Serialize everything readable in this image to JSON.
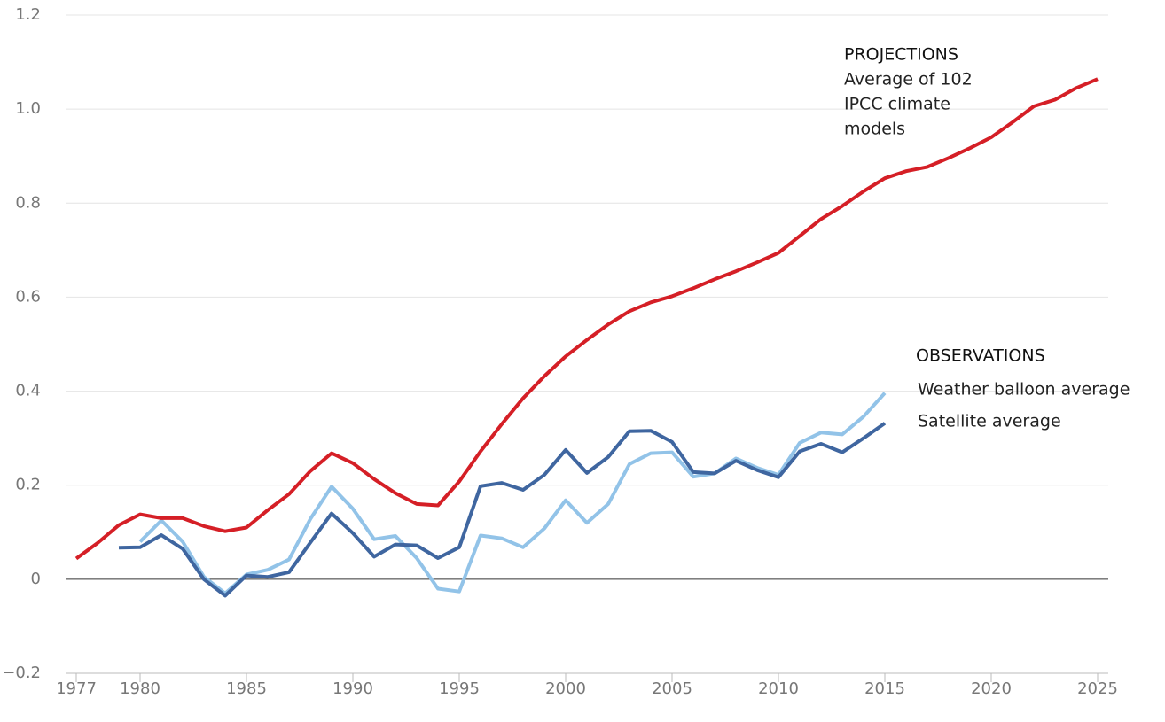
{
  "chart_data": {
    "type": "line",
    "x": [
      1977,
      1978,
      1979,
      1980,
      1981,
      1982,
      1983,
      1984,
      1985,
      1986,
      1987,
      1988,
      1989,
      1990,
      1991,
      1992,
      1993,
      1994,
      1995,
      1996,
      1997,
      1998,
      1999,
      2000,
      2001,
      2002,
      2003,
      2004,
      2005,
      2006,
      2007,
      2008,
      2009,
      2010,
      2011,
      2012,
      2013,
      2014,
      2015,
      2016,
      2017,
      2018,
      2019,
      2020,
      2021,
      2022,
      2023,
      2024,
      2025
    ],
    "series": [
      {
        "name_lines": [
          "Average of 102",
          "IPCC climate",
          "models"
        ],
        "color": "#d51f26",
        "values": [
          0.044,
          0.077,
          0.115,
          0.138,
          0.13,
          0.13,
          0.113,
          0.102,
          0.11,
          0.147,
          0.181,
          0.23,
          0.268,
          0.247,
          0.213,
          0.183,
          0.16,
          0.157,
          0.208,
          0.272,
          0.33,
          0.385,
          0.432,
          0.474,
          0.509,
          0.542,
          0.57,
          0.589,
          0.602,
          0.619,
          0.638,
          0.655,
          0.674,
          0.694,
          0.73,
          0.766,
          0.794,
          0.825,
          0.853,
          0.868,
          0.877,
          0.896,
          0.917,
          0.94,
          0.972,
          1.006,
          1.02,
          1.045,
          1.064
        ]
      },
      {
        "name": "Weather balloon average",
        "color": "#92c3e8",
        "values": [
          null,
          null,
          null,
          0.08,
          0.125,
          0.08,
          0.005,
          -0.03,
          0.01,
          0.02,
          0.042,
          0.128,
          0.197,
          0.15,
          0.085,
          0.092,
          0.045,
          -0.02,
          -0.026,
          0.093,
          0.087,
          0.068,
          0.108,
          0.168,
          0.12,
          0.16,
          0.245,
          0.268,
          0.27,
          0.218,
          0.225,
          0.257,
          0.237,
          0.222,
          0.29,
          0.312,
          0.308,
          0.346,
          0.396,
          null,
          null,
          null,
          null,
          null,
          null,
          null,
          null,
          null,
          null
        ]
      },
      {
        "name": "Satellite average",
        "color": "#3f66a0",
        "values": [
          null,
          null,
          0.067,
          0.068,
          0.094,
          0.065,
          0.0,
          -0.035,
          0.008,
          0.005,
          0.015,
          0.078,
          0.14,
          0.098,
          0.048,
          0.074,
          0.072,
          0.045,
          0.068,
          0.198,
          0.205,
          0.19,
          0.222,
          0.275,
          0.226,
          0.26,
          0.315,
          0.316,
          0.292,
          0.228,
          0.225,
          0.252,
          0.232,
          0.217,
          0.272,
          0.288,
          0.27,
          0.3,
          0.332,
          null,
          null,
          null,
          null,
          null,
          null,
          null,
          null,
          null,
          null
        ]
      }
    ],
    "annotations": {
      "projections": "PROJECTIONS",
      "observations": "OBSERVATIONS"
    },
    "xlim": [
      1976.5,
      2025.5
    ],
    "xticks": [
      1977,
      1980,
      1985,
      1990,
      1995,
      2000,
      2005,
      2010,
      2015,
      2020,
      2025
    ],
    "ylim": [
      -0.2,
      1.2
    ],
    "yticks": [
      {
        "value": -0.2,
        "label": "−0.2"
      },
      0,
      0.2,
      0.4,
      0.6,
      0.8,
      {
        "value": 1.0,
        "label": "1.0"
      },
      1.2
    ],
    "grid": true
  }
}
